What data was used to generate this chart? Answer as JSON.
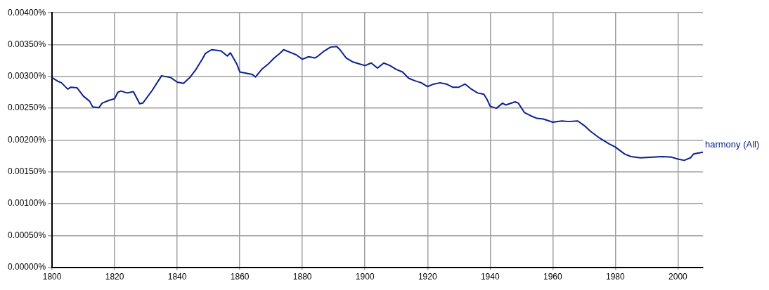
{
  "chart_data": {
    "type": "line",
    "x": [
      1800,
      1802,
      1803,
      1805,
      1806,
      1808,
      1810,
      1812,
      1813,
      1815,
      1816,
      1818,
      1820,
      1821,
      1822,
      1824,
      1826,
      1828,
      1829,
      1832,
      1835,
      1838,
      1840,
      1842,
      1844,
      1846,
      1848,
      1849,
      1851,
      1854,
      1856,
      1857,
      1859,
      1860,
      1862,
      1864,
      1865,
      1867,
      1869,
      1871,
      1873,
      1874,
      1876,
      1878,
      1880,
      1882,
      1884,
      1885,
      1887,
      1889,
      1891,
      1892,
      1894,
      1896,
      1898,
      1900,
      1902,
      1904,
      1906,
      1908,
      1910,
      1912,
      1914,
      1916,
      1918,
      1920,
      1922,
      1924,
      1926,
      1928,
      1930,
      1932,
      1934,
      1936,
      1938,
      1939,
      1940,
      1942,
      1944,
      1945,
      1948,
      1949,
      1951,
      1953,
      1955,
      1957,
      1960,
      1963,
      1965,
      1968,
      1970,
      1972,
      1975,
      1978,
      1980,
      1983,
      1985,
      1988,
      1992,
      1995,
      1998,
      2000,
      2002,
      2004,
      2005,
      2008
    ],
    "series": [
      {
        "name": "harmony (All)",
        "color": "#0a218f",
        "values": [
          0.00298,
          0.00292,
          0.0029,
          0.0028,
          0.00283,
          0.00282,
          0.00269,
          0.00261,
          0.00252,
          0.00251,
          0.00258,
          0.00262,
          0.00265,
          0.00275,
          0.00277,
          0.00274,
          0.00276,
          0.00257,
          0.00258,
          0.00278,
          0.00301,
          0.00298,
          0.00291,
          0.00289,
          0.00298,
          0.00311,
          0.00327,
          0.00336,
          0.00342,
          0.0034,
          0.00332,
          0.00337,
          0.0032,
          0.00307,
          0.00305,
          0.00303,
          0.00299,
          0.00311,
          0.00319,
          0.00329,
          0.00337,
          0.00342,
          0.00338,
          0.00334,
          0.00327,
          0.00331,
          0.00329,
          0.00332,
          0.0034,
          0.00346,
          0.00347,
          0.00342,
          0.00329,
          0.00323,
          0.0032,
          0.00317,
          0.00321,
          0.00313,
          0.00321,
          0.00317,
          0.00311,
          0.00307,
          0.00297,
          0.00293,
          0.0029,
          0.00284,
          0.00288,
          0.0029,
          0.00288,
          0.00283,
          0.00283,
          0.00288,
          0.0028,
          0.00274,
          0.00272,
          0.00264,
          0.00253,
          0.0025,
          0.00258,
          0.00255,
          0.0026,
          0.00258,
          0.00243,
          0.00238,
          0.00234,
          0.00233,
          0.00228,
          0.0023,
          0.00229,
          0.0023,
          0.00223,
          0.00214,
          0.00203,
          0.00194,
          0.00189,
          0.00178,
          0.00174,
          0.00172,
          0.00173,
          0.00174,
          0.00173,
          0.0017,
          0.00168,
          0.00172,
          0.00178,
          0.00181
        ]
      }
    ],
    "xlim": [
      1800,
      2008
    ],
    "xticks": [
      1800,
      1820,
      1840,
      1860,
      1880,
      1900,
      1920,
      1940,
      1960,
      1980,
      2000
    ],
    "ylim": [
      0,
      0.004
    ],
    "yticks": [
      {
        "value": 0,
        "label": "0.00000%"
      },
      {
        "value": 0.0005,
        "label": "0.00050%"
      },
      {
        "value": 0.001,
        "label": "0.00100%"
      },
      {
        "value": 0.0015,
        "label": "0.00150%"
      },
      {
        "value": 0.002,
        "label": "0.00200%"
      },
      {
        "value": 0.0025,
        "label": "0.00250%"
      },
      {
        "value": 0.003,
        "label": "0.00300%"
      },
      {
        "value": 0.0035,
        "label": "0.00350%"
      },
      {
        "value": 0.004,
        "label": "0.00400%"
      }
    ],
    "grid": true,
    "marker": "none",
    "line_style": "solid"
  }
}
